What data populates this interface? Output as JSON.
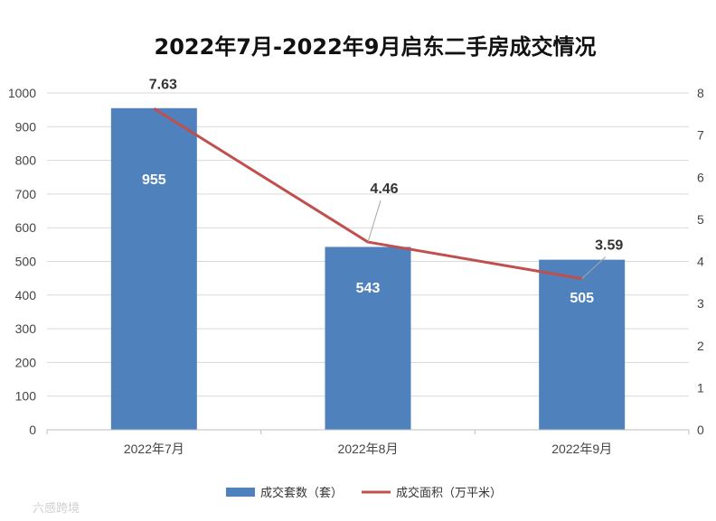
{
  "chart_data": {
    "type": "bar",
    "title": "2022年7月-2022年9月启东二手房成交情况",
    "categories": [
      "2022年7月",
      "2022年8月",
      "2022年9月"
    ],
    "series": [
      {
        "name": "成交套数（套）",
        "type": "bar",
        "axis": "left",
        "values": [
          955,
          543,
          505
        ],
        "labels": [
          "955",
          "543",
          "505"
        ],
        "color": "#4f81bd"
      },
      {
        "name": "成交面积（万平米）",
        "type": "line",
        "axis": "right",
        "values": [
          7.63,
          4.46,
          3.59
        ],
        "labels": [
          "7.63",
          "4.46",
          "3.59"
        ],
        "color": "#c0504d"
      }
    ],
    "y_left": {
      "min": 0,
      "max": 1000,
      "ticks": [
        "0",
        "100",
        "200",
        "300",
        "400",
        "500",
        "600",
        "700",
        "800",
        "900",
        "1000"
      ]
    },
    "y_right": {
      "min": 0,
      "max": 8,
      "ticks": [
        "0",
        "1",
        "2",
        "3",
        "4",
        "5",
        "6",
        "7",
        "8"
      ]
    },
    "grid": true,
    "legend_position": "bottom"
  },
  "watermark": "六感跨境"
}
